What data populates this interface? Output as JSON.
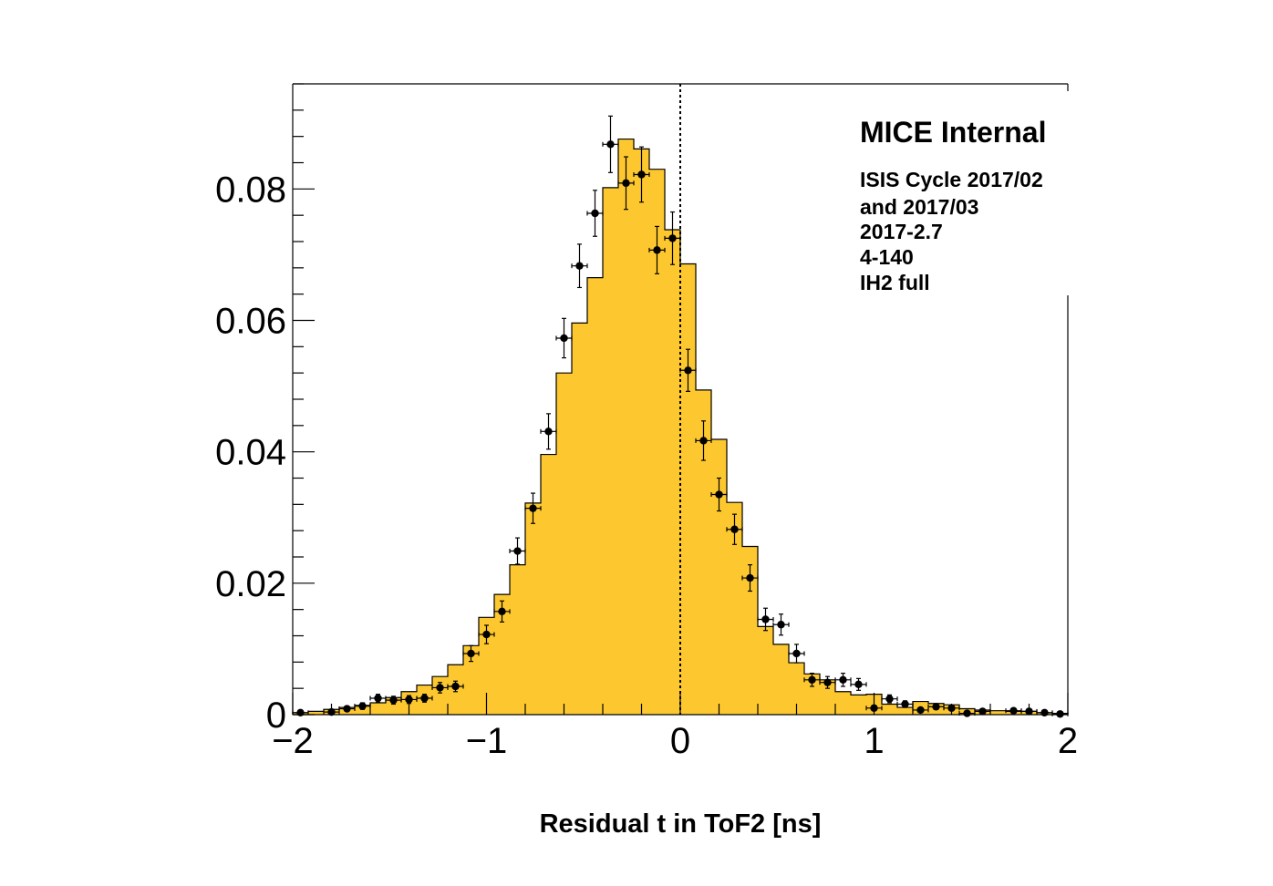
{
  "chart_data": {
    "type": "bar",
    "title": "",
    "xlabel": "Residual t in ToF2 [ns]",
    "ylabel": "",
    "xlim": [
      -2,
      2
    ],
    "ylim": [
      0,
      0.096
    ],
    "grid": false,
    "colors": {
      "histogram_fill": "#fdc82f",
      "histogram_line": "#000000",
      "points": "#000000"
    },
    "x_ticks": [
      {
        "value": -2,
        "label": "−2"
      },
      {
        "value": -1,
        "label": "−1"
      },
      {
        "value": 0,
        "label": "0"
      },
      {
        "value": 1,
        "label": "1"
      },
      {
        "value": 2,
        "label": "2"
      }
    ],
    "y_ticks": [
      {
        "value": 0,
        "label": "0"
      },
      {
        "value": 0.02,
        "label": "0.02"
      },
      {
        "value": 0.04,
        "label": "0.04"
      },
      {
        "value": 0.06,
        "label": "0.06"
      },
      {
        "value": 0.08,
        "label": "0.08"
      }
    ],
    "annotations": {
      "header": "MICE Internal",
      "lines": [
        "ISIS Cycle 2017/02",
        "and 2017/03",
        "2017-2.7",
        "4-140",
        "IH2 full"
      ]
    },
    "reference_line_x": 0,
    "histogram": {
      "bin_edges": [
        -2.0,
        -1.92,
        -1.84,
        -1.76,
        -1.68,
        -1.6,
        -1.52,
        -1.44,
        -1.36,
        -1.28,
        -1.2,
        -1.12,
        -1.04,
        -0.96,
        -0.88,
        -0.8,
        -0.72,
        -0.64,
        -0.56,
        -0.48,
        -0.4,
        -0.32,
        -0.24,
        -0.16,
        -0.08,
        0.0,
        0.08,
        0.16,
        0.24,
        0.32,
        0.4,
        0.48,
        0.56,
        0.64,
        0.72,
        0.8,
        0.88,
        0.96,
        1.04,
        1.12,
        1.2,
        1.28,
        1.36,
        1.44,
        1.52,
        1.6,
        1.68,
        1.76,
        1.84,
        1.92,
        2.0
      ],
      "values": [
        0.0003,
        0.0005,
        0.0008,
        0.0011,
        0.0014,
        0.0018,
        0.0026,
        0.0035,
        0.0045,
        0.0058,
        0.0076,
        0.0105,
        0.0148,
        0.0183,
        0.0228,
        0.0322,
        0.0396,
        0.052,
        0.0596,
        0.0665,
        0.0802,
        0.0876,
        0.0861,
        0.083,
        0.0738,
        0.0686,
        0.0494,
        0.0419,
        0.0323,
        0.0256,
        0.0134,
        0.0107,
        0.0079,
        0.0062,
        0.0053,
        0.0035,
        0.003,
        0.0031,
        0.0016,
        0.0011,
        0.002,
        0.0017,
        0.0015,
        0.0009,
        0.0007,
        0.0006,
        0.0005,
        0.0005,
        0.0003,
        0.0002
      ]
    },
    "points": {
      "x_err": 0.04,
      "x": [
        -1.96,
        -1.8,
        -1.72,
        -1.64,
        -1.56,
        -1.48,
        -1.4,
        -1.32,
        -1.24,
        -1.16,
        -1.08,
        -1.0,
        -0.92,
        -0.84,
        -0.76,
        -0.68,
        -0.6,
        -0.52,
        -0.44,
        -0.36,
        -0.28,
        -0.2,
        -0.12,
        -0.04,
        0.04,
        0.12,
        0.2,
        0.28,
        0.36,
        0.44,
        0.52,
        0.6,
        0.68,
        0.76,
        0.84,
        0.92,
        1.0,
        1.08,
        1.16,
        1.24,
        1.32,
        1.4,
        1.48,
        1.56,
        1.72,
        1.8,
        1.88,
        1.96
      ],
      "y": [
        0.0003,
        0.0004,
        0.0009,
        0.0013,
        0.0025,
        0.0022,
        0.0023,
        0.0025,
        0.0041,
        0.0043,
        0.0093,
        0.0122,
        0.0157,
        0.0249,
        0.0314,
        0.0431,
        0.0573,
        0.0683,
        0.0763,
        0.0868,
        0.0809,
        0.0822,
        0.0707,
        0.0725,
        0.0524,
        0.0417,
        0.0335,
        0.0282,
        0.0208,
        0.0145,
        0.0137,
        0.0093,
        0.0053,
        0.0049,
        0.0053,
        0.0046,
        0.001,
        0.0024,
        0.0016,
        0.0007,
        0.0012,
        0.001,
        0.0002,
        0.0005,
        0.0006,
        0.0005,
        0.0003,
        0.0001
      ],
      "y_err": [
        0.0002,
        0.0002,
        0.0004,
        0.0005,
        0.0006,
        0.0006,
        0.0006,
        0.0006,
        0.0008,
        0.0008,
        0.0012,
        0.0014,
        0.0016,
        0.002,
        0.0023,
        0.0027,
        0.003,
        0.0033,
        0.0035,
        0.0043,
        0.004,
        0.0042,
        0.0036,
        0.004,
        0.0032,
        0.003,
        0.0025,
        0.0023,
        0.002,
        0.0017,
        0.0016,
        0.0014,
        0.001,
        0.0009,
        0.001,
        0.0009,
        0.0004,
        0.0006,
        0.0005,
        0.0003,
        0.0004,
        0.0004,
        0.0002,
        0.0002,
        0.0003,
        0.0002,
        0.0002,
        0.0001
      ]
    }
  }
}
